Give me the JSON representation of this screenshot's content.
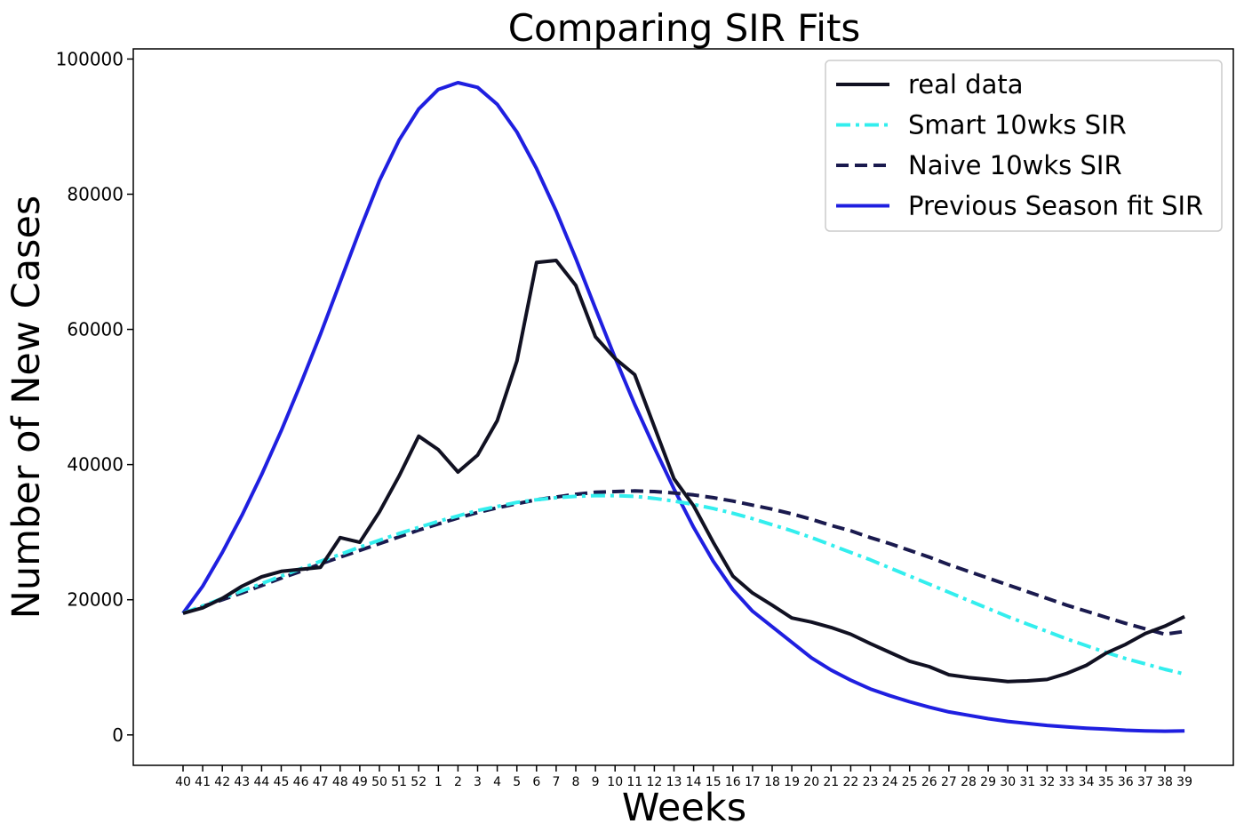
{
  "chart_data": {
    "type": "line",
    "title": "Comparing SIR Fits",
    "xlabel": "Weeks",
    "ylabel": "Number of New Cases",
    "categories": [
      "40",
      "41",
      "42",
      "43",
      "44",
      "45",
      "46",
      "47",
      "48",
      "49",
      "50",
      "51",
      "52",
      "1",
      "2",
      "3",
      "4",
      "5",
      "6",
      "7",
      "8",
      "9",
      "10",
      "11",
      "12",
      "13",
      "14",
      "15",
      "16",
      "17",
      "18",
      "19",
      "20",
      "21",
      "22",
      "23",
      "24",
      "25",
      "26",
      "27",
      "28",
      "29",
      "30",
      "31",
      "32",
      "33",
      "34",
      "35",
      "36",
      "37",
      "38",
      "39"
    ],
    "ylim": [
      -4500,
      101500
    ],
    "yticks": [
      0,
      20000,
      40000,
      60000,
      80000,
      100000
    ],
    "yticklabels": [
      "0",
      "20000",
      "40000",
      "60000",
      "80000",
      "100000"
    ],
    "grid": false,
    "legend": "top-right",
    "series": [
      {
        "name": "real data",
        "color": "#111122",
        "dash": "solid",
        "values": [
          18000,
          18800,
          20200,
          22000,
          23400,
          24200,
          24500,
          24800,
          29200,
          28500,
          33000,
          38300,
          44200,
          42200,
          38900,
          41400,
          46500,
          55300,
          69900,
          70200,
          66500,
          58900,
          55700,
          53300,
          45600,
          37900,
          33900,
          28500,
          23500,
          21000,
          19200,
          17300,
          16700,
          15900,
          14900,
          13500,
          12200,
          10900,
          10100,
          8900,
          8500,
          8200,
          7900,
          8000,
          8200,
          9100,
          10300,
          12100,
          13400,
          15000,
          16100,
          17500
        ]
      },
      {
        "name": "Smart 10wks SIR",
        "color": "#33eeee",
        "dash": "dashdot",
        "values": [
          18000,
          19100,
          20200,
          21300,
          22400,
          23500,
          24600,
          25700,
          26700,
          27800,
          28800,
          29800,
          30700,
          31600,
          32400,
          33200,
          33800,
          34400,
          34800,
          35100,
          35300,
          35400,
          35400,
          35300,
          35000,
          34600,
          34100,
          33500,
          32800,
          32000,
          31100,
          30200,
          29200,
          28100,
          27000,
          25900,
          24700,
          23500,
          22300,
          21100,
          19900,
          18700,
          17500,
          16400,
          15300,
          14200,
          13200,
          12200,
          11300,
          10500,
          9700,
          9000
        ]
      },
      {
        "name": "Naive 10wks SIR",
        "color": "#1a1a4e",
        "dash": "dashed",
        "values": [
          18000,
          19000,
          20000,
          21000,
          22100,
          23200,
          24200,
          25300,
          26300,
          27300,
          28300,
          29300,
          30300,
          31200,
          32100,
          32900,
          33600,
          34200,
          34800,
          35200,
          35600,
          35900,
          36000,
          36100,
          36000,
          35800,
          35500,
          35100,
          34600,
          34000,
          33400,
          32700,
          31900,
          31000,
          30200,
          29200,
          28300,
          27300,
          26300,
          25200,
          24200,
          23200,
          22200,
          21200,
          20200,
          19200,
          18300,
          17400,
          16500,
          15700,
          14900,
          15300
        ]
      },
      {
        "name": "Previous Season fit SIR",
        "color": "#1f1fe0",
        "dash": "solid",
        "values": [
          18000,
          22000,
          27000,
          32500,
          38500,
          45000,
          52000,
          59300,
          67000,
          74700,
          82000,
          88000,
          92600,
          95500,
          96500,
          95800,
          93300,
          89200,
          83800,
          77500,
          70500,
          63100,
          55800,
          48900,
          42500,
          36400,
          30700,
          25700,
          21500,
          18300,
          16000,
          13700,
          11400,
          9600,
          8100,
          6800,
          5800,
          4900,
          4100,
          3400,
          2900,
          2400,
          2000,
          1700,
          1400,
          1200,
          1000,
          850,
          700,
          600,
          550,
          600
        ]
      }
    ]
  }
}
